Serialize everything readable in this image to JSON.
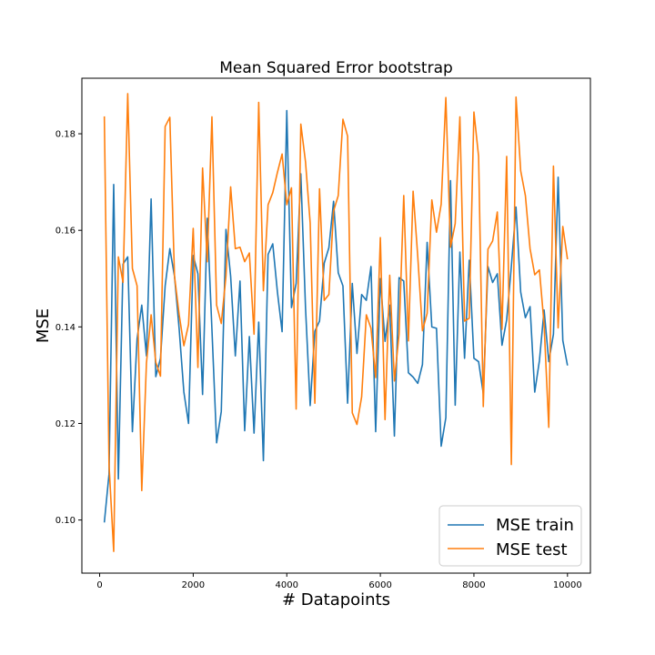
{
  "chart_data": {
    "type": "line",
    "title": "Mean Squared Error bootstrap",
    "xlabel": "# Datapoints",
    "ylabel": "MSE",
    "xlim": [
      -380,
      10490
    ],
    "ylim": [
      0.089,
      0.1915
    ],
    "xticks": [
      0,
      2000,
      4000,
      6000,
      8000,
      10000
    ],
    "yticks": [
      0.1,
      0.12,
      0.14,
      0.16,
      0.18
    ],
    "ytick_labels": [
      "0.10",
      "0.12",
      "0.14",
      "0.16",
      "0.18"
    ],
    "grid": false,
    "legend_position": "lower-right",
    "x": [
      100,
      200,
      300,
      400,
      500,
      600,
      700,
      800,
      900,
      1000,
      1100,
      1200,
      1300,
      1400,
      1500,
      1600,
      1700,
      1800,
      1900,
      2000,
      2100,
      2200,
      2300,
      2400,
      2500,
      2600,
      2700,
      2800,
      2900,
      3000,
      3100,
      3200,
      3300,
      3400,
      3500,
      3600,
      3700,
      3800,
      3900,
      4000,
      4100,
      4200,
      4300,
      4400,
      4500,
      4600,
      4700,
      4800,
      4900,
      5000,
      5100,
      5200,
      5300,
      5400,
      5500,
      5600,
      5700,
      5800,
      5900,
      6000,
      6100,
      6200,
      6300,
      6400,
      6500,
      6600,
      6700,
      6800,
      6900,
      7000,
      7100,
      7200,
      7300,
      7400,
      7500,
      7600,
      7700,
      7800,
      7900,
      8000,
      8100,
      8200,
      8300,
      8400,
      8500,
      8600,
      8700,
      8800,
      8900,
      9000,
      9100,
      9200,
      9300,
      9400,
      9500,
      9600,
      9700,
      9800,
      9900,
      10000
    ],
    "series": [
      {
        "name": "MSE train",
        "color": "#1f77b4",
        "values": [
          0.0995,
          0.1095,
          0.1695,
          0.1085,
          0.153,
          0.1545,
          0.1183,
          0.1375,
          0.1445,
          0.134,
          0.1665,
          0.1297,
          0.1335,
          0.1485,
          0.1562,
          0.1505,
          0.1395,
          0.1265,
          0.12,
          0.1548,
          0.151,
          0.126,
          0.1625,
          0.1395,
          0.116,
          0.1225,
          0.1602,
          0.1505,
          0.134,
          0.1495,
          0.1185,
          0.138,
          0.118,
          0.141,
          0.1123,
          0.155,
          0.1572,
          0.1472,
          0.139,
          0.1848,
          0.144,
          0.149,
          0.1717,
          0.144,
          0.1237,
          0.1391,
          0.1412,
          0.1532,
          0.1564,
          0.166,
          0.1512,
          0.1485,
          0.1242,
          0.149,
          0.1345,
          0.1467,
          0.1455,
          0.1525,
          0.1183,
          0.15,
          0.137,
          0.1445,
          0.1174,
          0.1502,
          0.1495,
          0.1305,
          0.1296,
          0.1283,
          0.1322,
          0.1575,
          0.14,
          0.1397,
          0.1153,
          0.1212,
          0.1703,
          0.1238,
          0.1555,
          0.1335,
          0.1538,
          0.1335,
          0.1328,
          0.1262,
          0.1525,
          0.1492,
          0.151,
          0.1362,
          0.1415,
          0.1525,
          0.1648,
          0.1472,
          0.1419,
          0.1442,
          0.1265,
          0.133,
          0.1435,
          0.1328,
          0.1385,
          0.171,
          0.1372,
          0.132
        ]
      },
      {
        "name": "MSE test",
        "color": "#ff7f0e",
        "values": [
          0.1836,
          0.1115,
          0.0935,
          0.1545,
          0.1492,
          0.1883,
          0.1521,
          0.1485,
          0.1061,
          0.1325,
          0.1425,
          0.1327,
          0.1298,
          0.1815,
          0.1834,
          0.1505,
          0.1425,
          0.1361,
          0.1405,
          0.1604,
          0.1316,
          0.1729,
          0.1535,
          0.1835,
          0.1445,
          0.1407,
          0.1505,
          0.169,
          0.1562,
          0.1565,
          0.1535,
          0.1553,
          0.1385,
          0.1865,
          0.1475,
          0.1653,
          0.1678,
          0.172,
          0.1758,
          0.1653,
          0.1688,
          0.123,
          0.182,
          0.1742,
          0.1615,
          0.1242,
          0.1686,
          0.1455,
          0.1467,
          0.164,
          0.1672,
          0.183,
          0.1795,
          0.1222,
          0.1198,
          0.1255,
          0.1425,
          0.1397,
          0.1295,
          0.1585,
          0.1208,
          0.1507,
          0.1288,
          0.1385,
          0.1672,
          0.1371,
          0.1681,
          0.1545,
          0.1392,
          0.1428,
          0.1663,
          0.1596,
          0.1654,
          0.1875,
          0.1565,
          0.1614,
          0.1835,
          0.1412,
          0.1418,
          0.1845,
          0.1753,
          0.1235,
          0.1561,
          0.1578,
          0.1638,
          0.1395,
          0.1753,
          0.1115,
          0.1876,
          0.1723,
          0.1672,
          0.1562,
          0.1508,
          0.1518,
          0.1405,
          0.1192,
          0.1733,
          0.1398,
          0.1608,
          0.154
        ]
      }
    ]
  }
}
